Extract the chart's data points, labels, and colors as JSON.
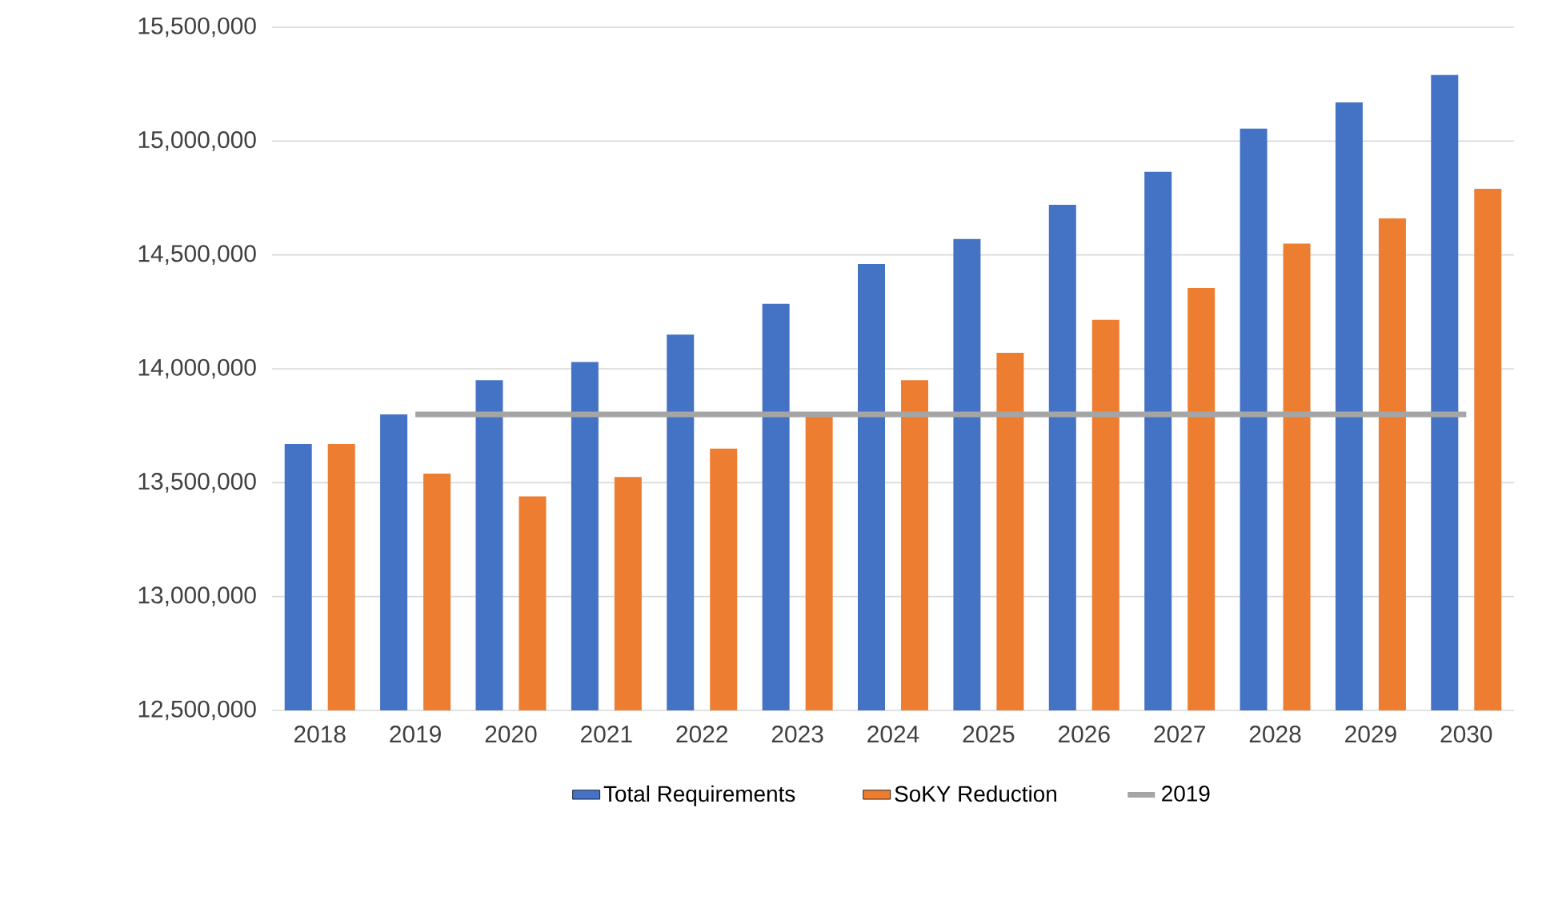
{
  "chart_data": {
    "type": "bar",
    "categories": [
      "2018",
      "2019",
      "2020",
      "2021",
      "2022",
      "2023",
      "2024",
      "2025",
      "2026",
      "2027",
      "2028",
      "2029",
      "2030"
    ],
    "series": [
      {
        "name": "Total Requirements",
        "color": "#4472c4",
        "values": [
          13670000,
          13800000,
          13950000,
          14030000,
          14150000,
          14285000,
          14460000,
          14570000,
          14720000,
          14865000,
          15055000,
          15170000,
          15290000
        ]
      },
      {
        "name": "SoKY Reduction",
        "color": "#ed7d31",
        "values": [
          13670000,
          13540000,
          13440000,
          13525000,
          13650000,
          13790000,
          13950000,
          14070000,
          14215000,
          14355000,
          14550000,
          14660000,
          14790000
        ]
      },
      {
        "name": "2019",
        "type": "line",
        "color": "#a5a5a5",
        "marker": "none",
        "values": [
          null,
          13800000,
          13800000,
          13800000,
          13800000,
          13800000,
          13800000,
          13800000,
          13800000,
          13800000,
          13800000,
          13800000,
          13800000
        ]
      }
    ],
    "ylim": [
      12500000,
      15500000
    ],
    "yticks": [
      {
        "value": 12500000,
        "label": "12,500,000"
      },
      {
        "value": 13000000,
        "label": "13,000,000"
      },
      {
        "value": 13500000,
        "label": "13,500,000"
      },
      {
        "value": 14000000,
        "label": "14,000,000"
      },
      {
        "value": 14500000,
        "label": "14,500,000"
      },
      {
        "value": 15000000,
        "label": "15,000,000"
      },
      {
        "value": 15500000,
        "label": "15,500,000"
      }
    ],
    "grid": "y",
    "legend": "bottom"
  }
}
